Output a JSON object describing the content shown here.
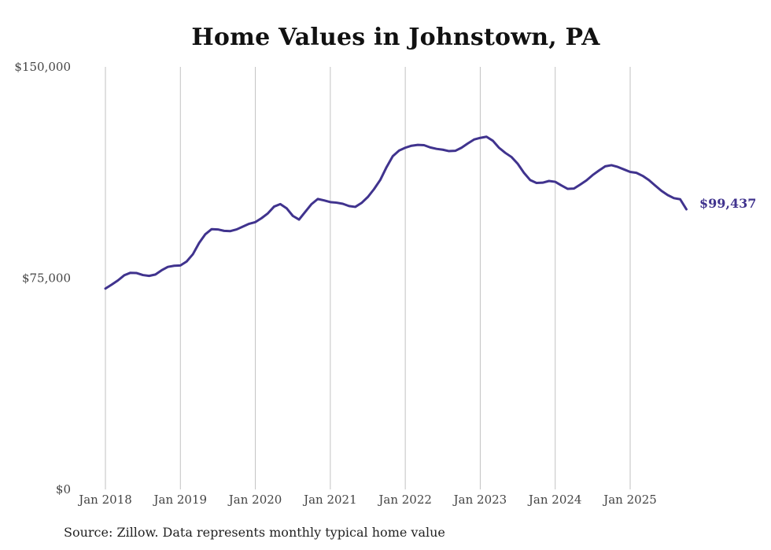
{
  "colors": {
    "series": "#40338e",
    "grid": "#c2c2c2",
    "text": "#444444"
  },
  "source_note": "Source: Zillow. Data represents monthly typical home value",
  "chart_data": {
    "type": "line",
    "title": "Home Values in Johnstown, PA",
    "xlabel": "",
    "ylabel": "",
    "ylim": [
      0,
      150000
    ],
    "yticks": [
      {
        "value": 0,
        "label": "$0"
      },
      {
        "value": 75000,
        "label": "$75,000"
      },
      {
        "value": 150000,
        "label": "$150,000"
      }
    ],
    "xticks": [
      {
        "value": 2018.0,
        "label": "Jan 2018"
      },
      {
        "value": 2019.0,
        "label": "Jan 2019"
      },
      {
        "value": 2020.0,
        "label": "Jan 2020"
      },
      {
        "value": 2021.0,
        "label": "Jan 2021"
      },
      {
        "value": 2022.0,
        "label": "Jan 2022"
      },
      {
        "value": 2023.0,
        "label": "Jan 2023"
      },
      {
        "value": 2024.0,
        "label": "Jan 2024"
      },
      {
        "value": 2025.0,
        "label": "Jan 2025"
      }
    ],
    "xlim": [
      2018.0,
      2025.75
    ],
    "grid": "vertical",
    "end_label": "$99,437",
    "series": [
      {
        "name": "Typical home value",
        "x": [
          2018.0,
          2018.083,
          2018.167,
          2018.25,
          2018.333,
          2018.417,
          2018.5,
          2018.583,
          2018.667,
          2018.75,
          2018.833,
          2018.917,
          2019.0,
          2019.083,
          2019.167,
          2019.25,
          2019.333,
          2019.417,
          2019.5,
          2019.583,
          2019.667,
          2019.75,
          2019.833,
          2019.917,
          2020.0,
          2020.083,
          2020.167,
          2020.25,
          2020.333,
          2020.417,
          2020.5,
          2020.583,
          2020.667,
          2020.75,
          2020.833,
          2020.917,
          2021.0,
          2021.083,
          2021.167,
          2021.25,
          2021.333,
          2021.417,
          2021.5,
          2021.583,
          2021.667,
          2021.75,
          2021.833,
          2021.917,
          2022.0,
          2022.083,
          2022.167,
          2022.25,
          2022.333,
          2022.417,
          2022.5,
          2022.583,
          2022.667,
          2022.75,
          2022.833,
          2022.917,
          2023.0,
          2023.083,
          2023.167,
          2023.25,
          2023.333,
          2023.417,
          2023.5,
          2023.583,
          2023.667,
          2023.75,
          2023.833,
          2023.917,
          2024.0,
          2024.083,
          2024.167,
          2024.25,
          2024.333,
          2024.417,
          2024.5,
          2024.583,
          2024.667,
          2024.75,
          2024.833,
          2024.917,
          2025.0,
          2025.083,
          2025.167,
          2025.25,
          2025.333,
          2025.417,
          2025.5,
          2025.583,
          2025.667,
          2025.75
        ],
        "values": [
          71300,
          72700,
          74200,
          76000,
          76900,
          76800,
          76100,
          75800,
          76300,
          77800,
          79000,
          79400,
          79500,
          80900,
          83500,
          87500,
          90600,
          92400,
          92300,
          91800,
          91700,
          92300,
          93300,
          94300,
          94900,
          96300,
          98000,
          100400,
          101300,
          99800,
          97100,
          95800,
          98600,
          101300,
          103100,
          102600,
          102000,
          101800,
          101400,
          100600,
          100300,
          101700,
          103800,
          106600,
          109900,
          114400,
          118300,
          120300,
          121300,
          122000,
          122300,
          122200,
          121400,
          120900,
          120600,
          120100,
          120200,
          121300,
          122800,
          124200,
          124800,
          125200,
          123800,
          121300,
          119500,
          118000,
          115600,
          112400,
          109800,
          108800,
          108900,
          109500,
          109200,
          107900,
          106700,
          106800,
          108200,
          109700,
          111600,
          113200,
          114700,
          115100,
          114500,
          113600,
          112700,
          112400,
          111300,
          109800,
          107900,
          106000,
          104500,
          103400,
          103000,
          99437
        ]
      }
    ]
  }
}
